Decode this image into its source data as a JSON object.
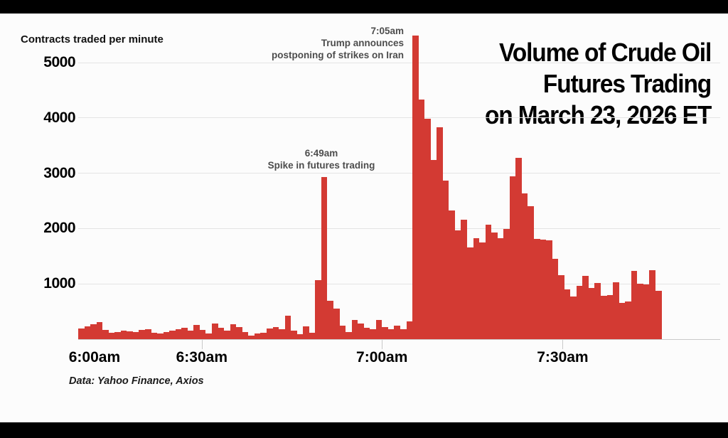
{
  "header_label": "Contracts traded per minute",
  "title": {
    "lines": [
      "Volume of Crude Oil",
      "Futures Trading",
      "on March 23, 2026 ET"
    ]
  },
  "source": "Data: Yahoo Finance, Axios",
  "annotations": [
    {
      "id": "spike-649",
      "lines": [
        "6:49am",
        "Spike in futures trading"
      ]
    },
    {
      "id": "spike-705",
      "lines": [
        "7:05am",
        "Trump announces",
        "postponing of strikes on Iran"
      ]
    }
  ],
  "colors": {
    "bar": "#d33a33",
    "grid": "#e4e4e4",
    "axis": "#c9c9c9",
    "annotation_text": "#4d4d4d",
    "text": "#000000",
    "background": "#fcfcfc",
    "letterbox": "#000000"
  },
  "chart_data": {
    "type": "bar",
    "title": "Volume of Crude Oil Futures Trading on March 23, 2026 ET",
    "ylabel": "Contracts traded per minute",
    "xlabel": "",
    "grid": true,
    "legend_position": "none",
    "ylim": [
      0,
      5620
    ],
    "y_ticks": [
      1000,
      2000,
      3000,
      4000,
      5000
    ],
    "x_tick_labels": [
      {
        "label": "6:00am",
        "pos": 0.028,
        "tick_mark": false
      },
      {
        "label": "6:30am",
        "pos": 0.212,
        "tick_mark": true
      },
      {
        "label": "7:00am",
        "pos": 0.521,
        "tick_mark": true
      },
      {
        "label": "7:30am",
        "pos": 0.831,
        "tick_mark": true
      }
    ],
    "values": [
      190,
      235,
      265,
      310,
      170,
      120,
      125,
      150,
      145,
      130,
      165,
      180,
      120,
      100,
      130,
      150,
      180,
      210,
      160,
      260,
      170,
      105,
      280,
      210,
      155,
      270,
      215,
      130,
      70,
      105,
      115,
      190,
      220,
      175,
      420,
      155,
      90,
      230,
      115,
      1070,
      2930,
      700,
      550,
      250,
      130,
      350,
      280,
      200,
      175,
      350,
      220,
      175,
      250,
      180,
      320,
      5490,
      4330,
      3990,
      3240,
      3835,
      2870,
      2330,
      1970,
      2160,
      1660,
      1830,
      1750,
      2070,
      1930,
      1830,
      1990,
      2950,
      3280,
      2640,
      2400,
      1810,
      1800,
      1790,
      1450,
      1160,
      900,
      770,
      960,
      1150,
      920,
      1010,
      790,
      800,
      1030,
      660,
      685,
      1240,
      1000,
      990,
      1250,
      880
    ],
    "point_annotations": [
      {
        "text": "6:49am — Spike in futures trading",
        "bar_index": 40,
        "value": 2930
      },
      {
        "text": "7:05am — Trump announces postponing of strikes on Iran",
        "bar_index": 55,
        "value": 5490
      }
    ]
  }
}
